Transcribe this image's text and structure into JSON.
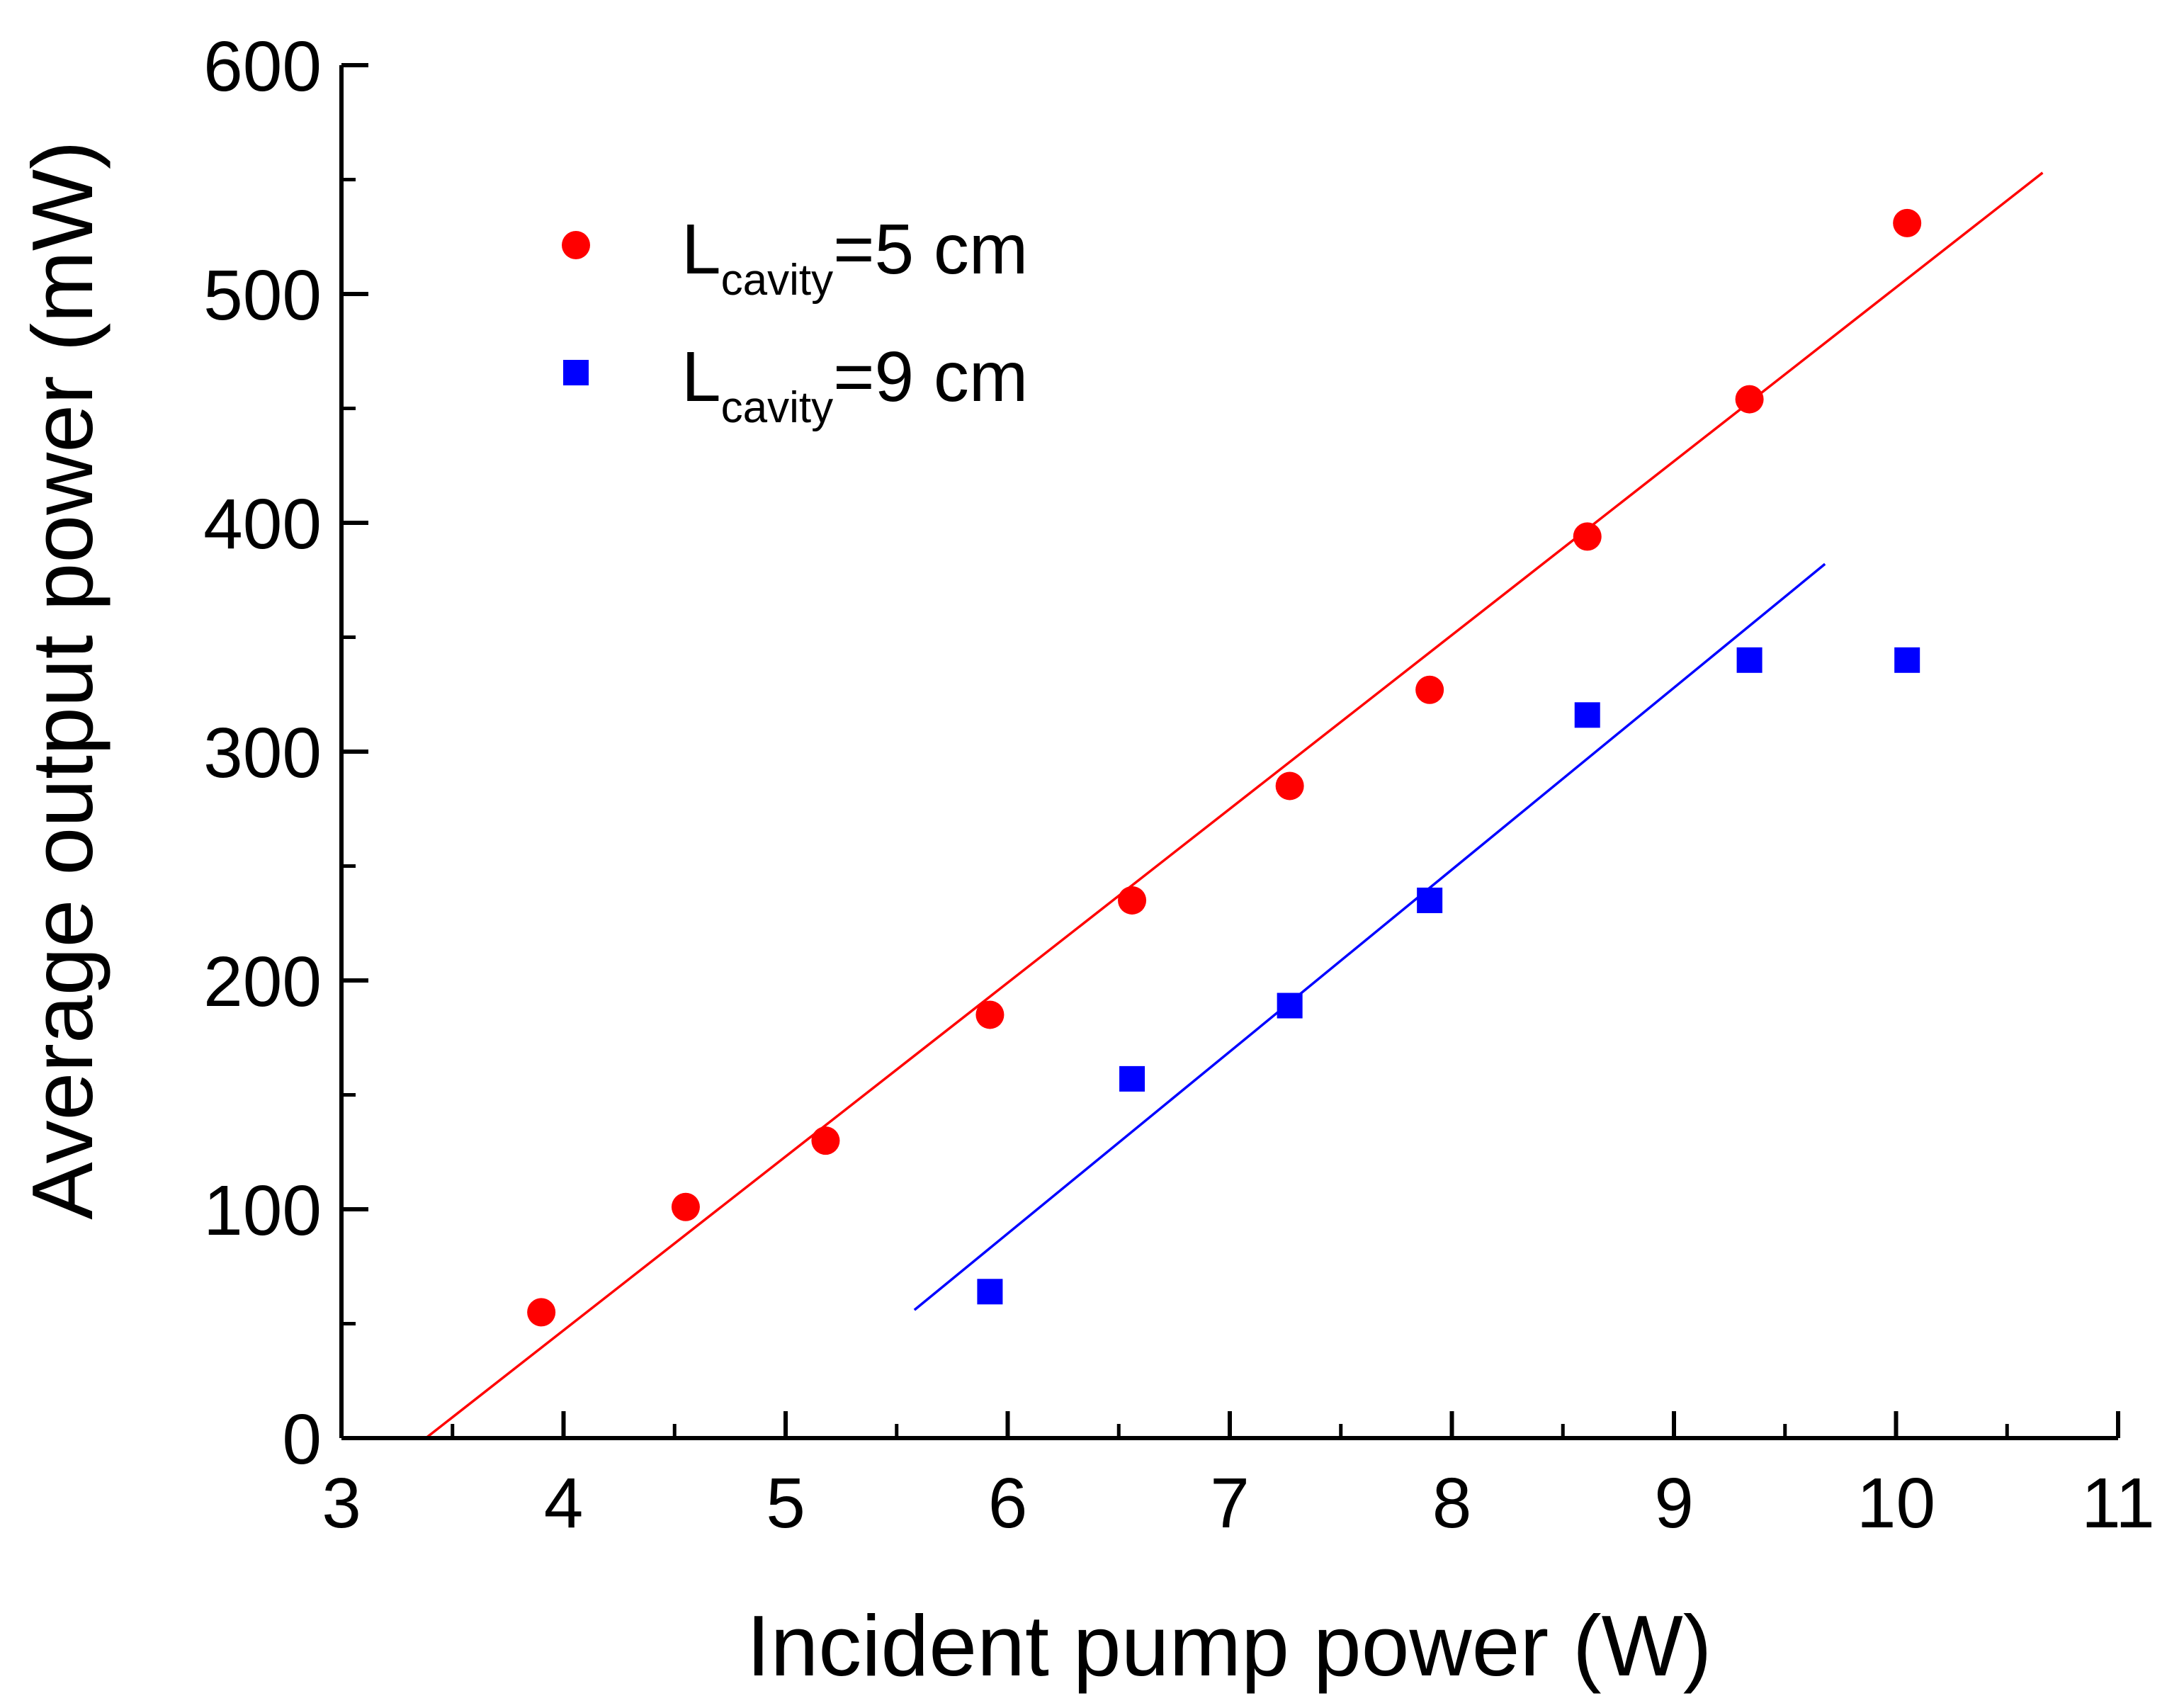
{
  "chart_data": {
    "type": "scatter",
    "title": "",
    "xlabel": "Incident pump power (W)",
    "ylabel": "Average output power (mW)",
    "xlim": [
      3,
      11
    ],
    "ylim": [
      0,
      600
    ],
    "x_ticks": [
      3,
      4,
      5,
      6,
      7,
      8,
      9,
      10,
      11
    ],
    "y_ticks": [
      0,
      100,
      200,
      300,
      400,
      500,
      600
    ],
    "grid": false,
    "legend_position": "top-left",
    "series": [
      {
        "name": "L_cavity=5 cm",
        "legend_main": "L",
        "legend_sub": "cavity",
        "legend_tail": "=5 cm",
        "color": "#ff0000",
        "marker": "circle",
        "x": [
          3.9,
          4.55,
          5.18,
          5.92,
          6.56,
          7.27,
          7.9,
          8.61,
          9.34,
          10.05
        ],
        "y": [
          55,
          101,
          130,
          185,
          235,
          285,
          327,
          394,
          454,
          531
        ],
        "fit": {
          "x": [
            3.38,
            10.66
          ],
          "y": [
            0,
            553
          ]
        }
      },
      {
        "name": "L_cavity=9 cm",
        "legend_main": "L",
        "legend_sub": "cavity",
        "legend_tail": "=9 cm",
        "color": "#0000ff",
        "marker": "square",
        "x": [
          5.92,
          6.56,
          7.27,
          7.9,
          8.61,
          9.34,
          10.05
        ],
        "y": [
          64,
          157,
          189,
          235,
          316,
          340,
          340
        ],
        "fit": {
          "x": [
            5.58,
            9.68
          ],
          "y": [
            56,
            382
          ]
        }
      }
    ]
  }
}
